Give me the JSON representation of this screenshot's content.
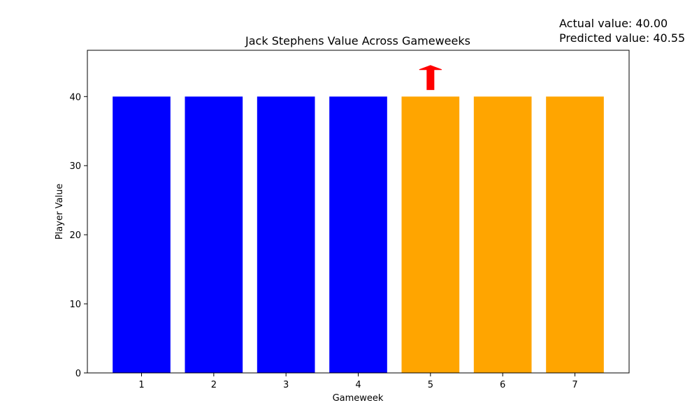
{
  "chart_data": {
    "type": "bar",
    "title": "Jack Stephens Value Across Gameweeks",
    "xlabel": "Gameweek",
    "ylabel": "Player Value",
    "categories": [
      "1",
      "2",
      "3",
      "4",
      "5",
      "6",
      "7"
    ],
    "values": [
      40,
      40,
      40,
      40,
      40,
      40,
      40
    ],
    "bar_colors": [
      "#0000ff",
      "#0000ff",
      "#0000ff",
      "#0000ff",
      "#ffa500",
      "#ffa500",
      "#ffa500"
    ],
    "ylim": [
      0,
      46.7
    ],
    "yticks": [
      0,
      10,
      20,
      30,
      40
    ],
    "grid": false,
    "arrow": {
      "category": "5",
      "direction": "up",
      "color": "#ff0000",
      "from": 41,
      "to": 44.5
    }
  },
  "annotations": {
    "actual": "Actual value: 40.00",
    "predicted": "Predicted value: 40.55"
  }
}
